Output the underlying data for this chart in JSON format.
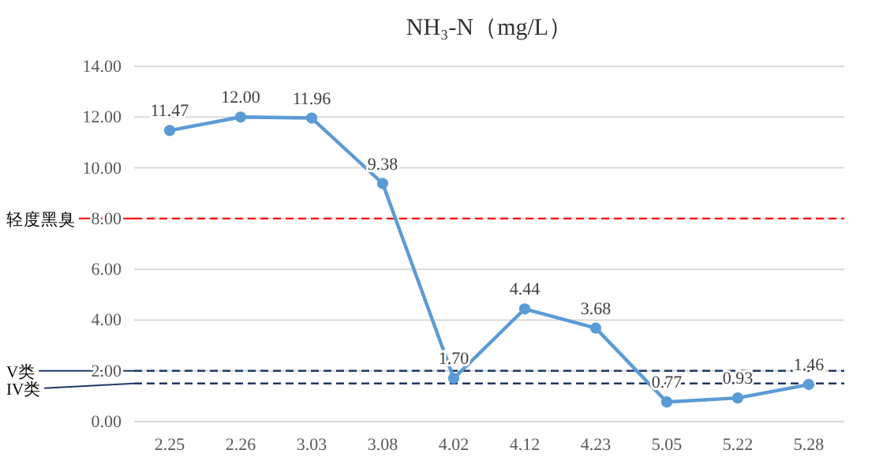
{
  "chart_data": {
    "type": "line",
    "title": "NH₃-N（mg/L）",
    "categories": [
      "2.25",
      "2.26",
      "3.03",
      "3.08",
      "4.02",
      "4.12",
      "4.23",
      "5.05",
      "5.22",
      "5.28"
    ],
    "series": [
      {
        "color": "#5b9bd5",
        "values": [
          11.47,
          12.0,
          11.96,
          9.38,
          1.7,
          4.44,
          3.68,
          0.77,
          0.93,
          1.46
        ],
        "value_labels": [
          "11.47",
          "12.00",
          "11.96",
          "9.38",
          "1.70",
          "4.44",
          "3.68",
          "0.77",
          "0.93",
          "1.46"
        ]
      }
    ],
    "ylim": [
      0,
      14
    ],
    "yticks": [
      {
        "value": 0,
        "label": "0.00"
      },
      {
        "value": 2,
        "label": "2.00"
      },
      {
        "value": 4,
        "label": "4.00"
      },
      {
        "value": 6,
        "label": "6.00"
      },
      {
        "value": 8,
        "label": "8.00"
      },
      {
        "value": 10,
        "label": "10.00"
      },
      {
        "value": 12,
        "label": "12.00"
      },
      {
        "value": 14,
        "label": "14.00"
      }
    ],
    "grid": "y",
    "marker": "circle",
    "ref_lines": [
      {
        "axis": "y",
        "value": 8,
        "label": "轻度黑臭",
        "color": "#ff0000",
        "line_style": "dashed"
      },
      {
        "axis": "y",
        "value": 2,
        "label": "V类",
        "color": "#1f3864",
        "line_style": "dashed"
      },
      {
        "axis": "y",
        "value": 1.5,
        "label": "IV类",
        "color": "#1f3864",
        "line_style": "dashed"
      }
    ]
  }
}
